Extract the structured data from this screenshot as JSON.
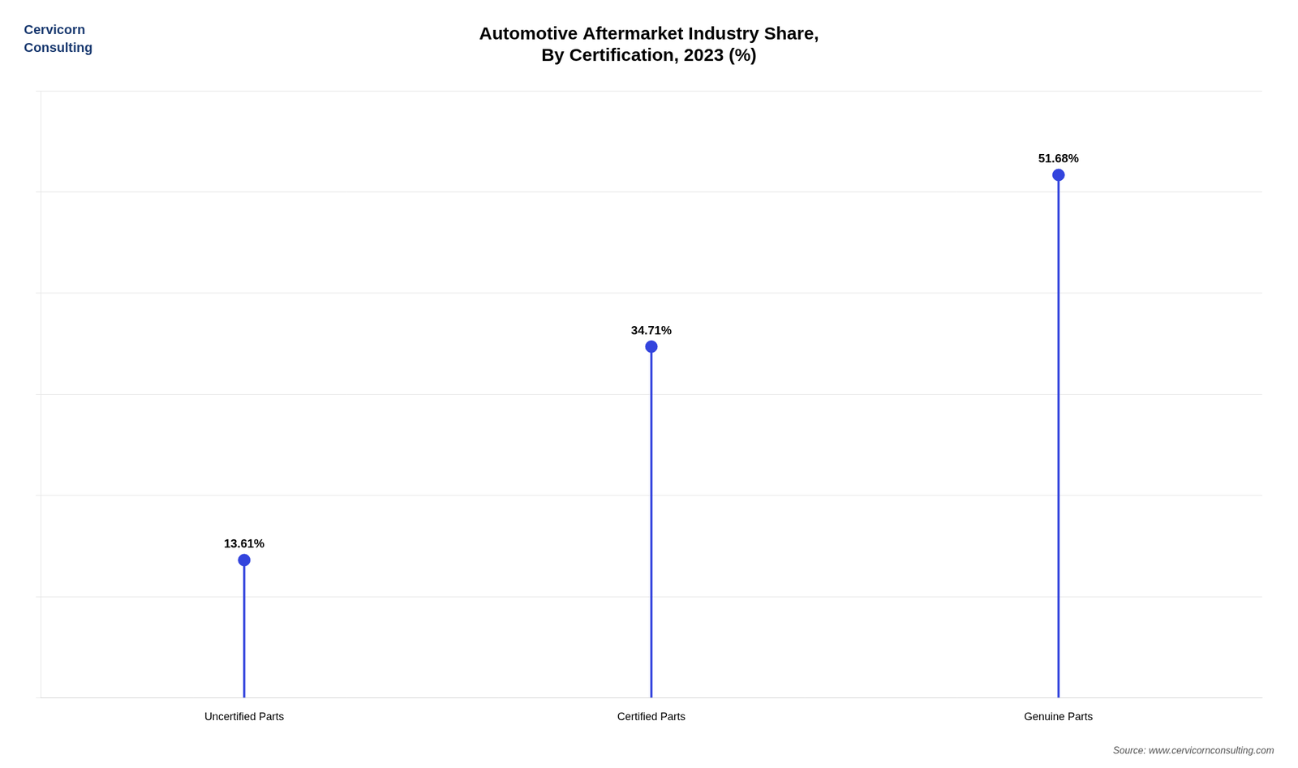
{
  "chart_data": {
    "type": "lollipop",
    "title": [
      "Automotive Aftermarket Industry Share,",
      "By Certification, 2023 (%)"
    ],
    "categories": [
      "Uncertified Parts",
      "Certified Parts",
      "Genuine Parts"
    ],
    "values": [
      13.61,
      34.71,
      51.68
    ],
    "value_labels": [
      "13.61%",
      "34.71%",
      "51.68%"
    ],
    "data_labels": true,
    "color": "#3344dd",
    "ylim": [
      0,
      60
    ],
    "yticks": [
      0,
      10,
      20,
      30,
      40,
      50,
      60
    ],
    "grid": true,
    "tick_labels": "x",
    "annotations": [
      "Cervicorn",
      "Consulting",
      "Source: www.cervicornconsulting.com"
    ]
  }
}
